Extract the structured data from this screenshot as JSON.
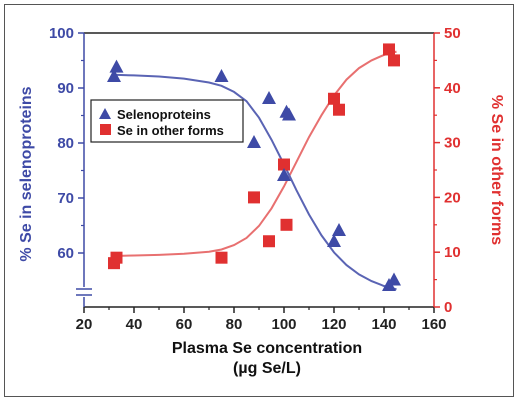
{
  "chart_data": {
    "type": "scatter",
    "xlabel": "Plasma Se concentration",
    "xlabel_unit": "(µg Se/L)",
    "ylabel_left": "% Se in selenoproteins",
    "ylabel_right": "% Se in other forms",
    "xlim": [
      20,
      160
    ],
    "ylim_left": [
      50,
      100
    ],
    "ylim_right": [
      0,
      50
    ],
    "x_ticks": [
      "20",
      "40",
      "60",
      "80",
      "100",
      "120",
      "140",
      "160"
    ],
    "y_left_ticks": [
      "60",
      "70",
      "80",
      "90",
      "100"
    ],
    "y_right_ticks": [
      "0",
      "10",
      "20",
      "30",
      "40",
      "50"
    ],
    "legend_position": "upper-left",
    "axis_break_left": true,
    "colors": {
      "left": "#3e4aa6",
      "right": "#e03030"
    },
    "series": [
      {
        "name": "Selenoproteins",
        "axis": "left",
        "marker": "triangle",
        "points": [
          {
            "x": 32,
            "y": 92
          },
          {
            "x": 33,
            "y": 93.7
          },
          {
            "x": 75,
            "y": 92
          },
          {
            "x": 88,
            "y": 80
          },
          {
            "x": 94,
            "y": 88
          },
          {
            "x": 100,
            "y": 74
          },
          {
            "x": 101,
            "y": 85.5
          },
          {
            "x": 102,
            "y": 85
          },
          {
            "x": 120,
            "y": 62
          },
          {
            "x": 122,
            "y": 64
          },
          {
            "x": 142,
            "y": 54
          },
          {
            "x": 144,
            "y": 55
          }
        ],
        "fit_curve": [
          {
            "x": 32,
            "y": 92.4
          },
          {
            "x": 40,
            "y": 92.3
          },
          {
            "x": 50,
            "y": 92.1
          },
          {
            "x": 60,
            "y": 91.7
          },
          {
            "x": 70,
            "y": 91.0
          },
          {
            "x": 75,
            "y": 90.4
          },
          {
            "x": 80,
            "y": 89.3
          },
          {
            "x": 85,
            "y": 87.6
          },
          {
            "x": 90,
            "y": 84.6
          },
          {
            "x": 95,
            "y": 80.6
          },
          {
            "x": 100,
            "y": 76.1
          },
          {
            "x": 105,
            "y": 71.4
          },
          {
            "x": 110,
            "y": 67.0
          },
          {
            "x": 115,
            "y": 63.2
          },
          {
            "x": 120,
            "y": 60.1
          },
          {
            "x": 125,
            "y": 57.8
          },
          {
            "x": 130,
            "y": 56.1
          },
          {
            "x": 135,
            "y": 54.9
          },
          {
            "x": 140,
            "y": 54.0
          },
          {
            "x": 145,
            "y": 53.4
          }
        ]
      },
      {
        "name": "Se in other forms",
        "axis": "right",
        "marker": "square",
        "points": [
          {
            "x": 32,
            "y": 8
          },
          {
            "x": 33,
            "y": 9
          },
          {
            "x": 75,
            "y": 9
          },
          {
            "x": 88,
            "y": 20
          },
          {
            "x": 94,
            "y": 12
          },
          {
            "x": 100,
            "y": 26
          },
          {
            "x": 101,
            "y": 15
          },
          {
            "x": 120,
            "y": 38
          },
          {
            "x": 122,
            "y": 36
          },
          {
            "x": 142,
            "y": 47
          },
          {
            "x": 144,
            "y": 45
          }
        ],
        "fit_curve": [
          {
            "x": 32,
            "y": 9.3
          },
          {
            "x": 40,
            "y": 9.4
          },
          {
            "x": 50,
            "y": 9.5
          },
          {
            "x": 60,
            "y": 9.7
          },
          {
            "x": 70,
            "y": 10.1
          },
          {
            "x": 75,
            "y": 10.5
          },
          {
            "x": 80,
            "y": 11.3
          },
          {
            "x": 85,
            "y": 12.6
          },
          {
            "x": 90,
            "y": 14.8
          },
          {
            "x": 95,
            "y": 18.0
          },
          {
            "x": 100,
            "y": 22.0
          },
          {
            "x": 105,
            "y": 26.5
          },
          {
            "x": 110,
            "y": 31.0
          },
          {
            "x": 115,
            "y": 35.0
          },
          {
            "x": 120,
            "y": 38.6
          },
          {
            "x": 125,
            "y": 41.5
          },
          {
            "x": 130,
            "y": 43.6
          },
          {
            "x": 135,
            "y": 45.0
          },
          {
            "x": 140,
            "y": 46.0
          },
          {
            "x": 145,
            "y": 46.6
          }
        ]
      }
    ]
  }
}
